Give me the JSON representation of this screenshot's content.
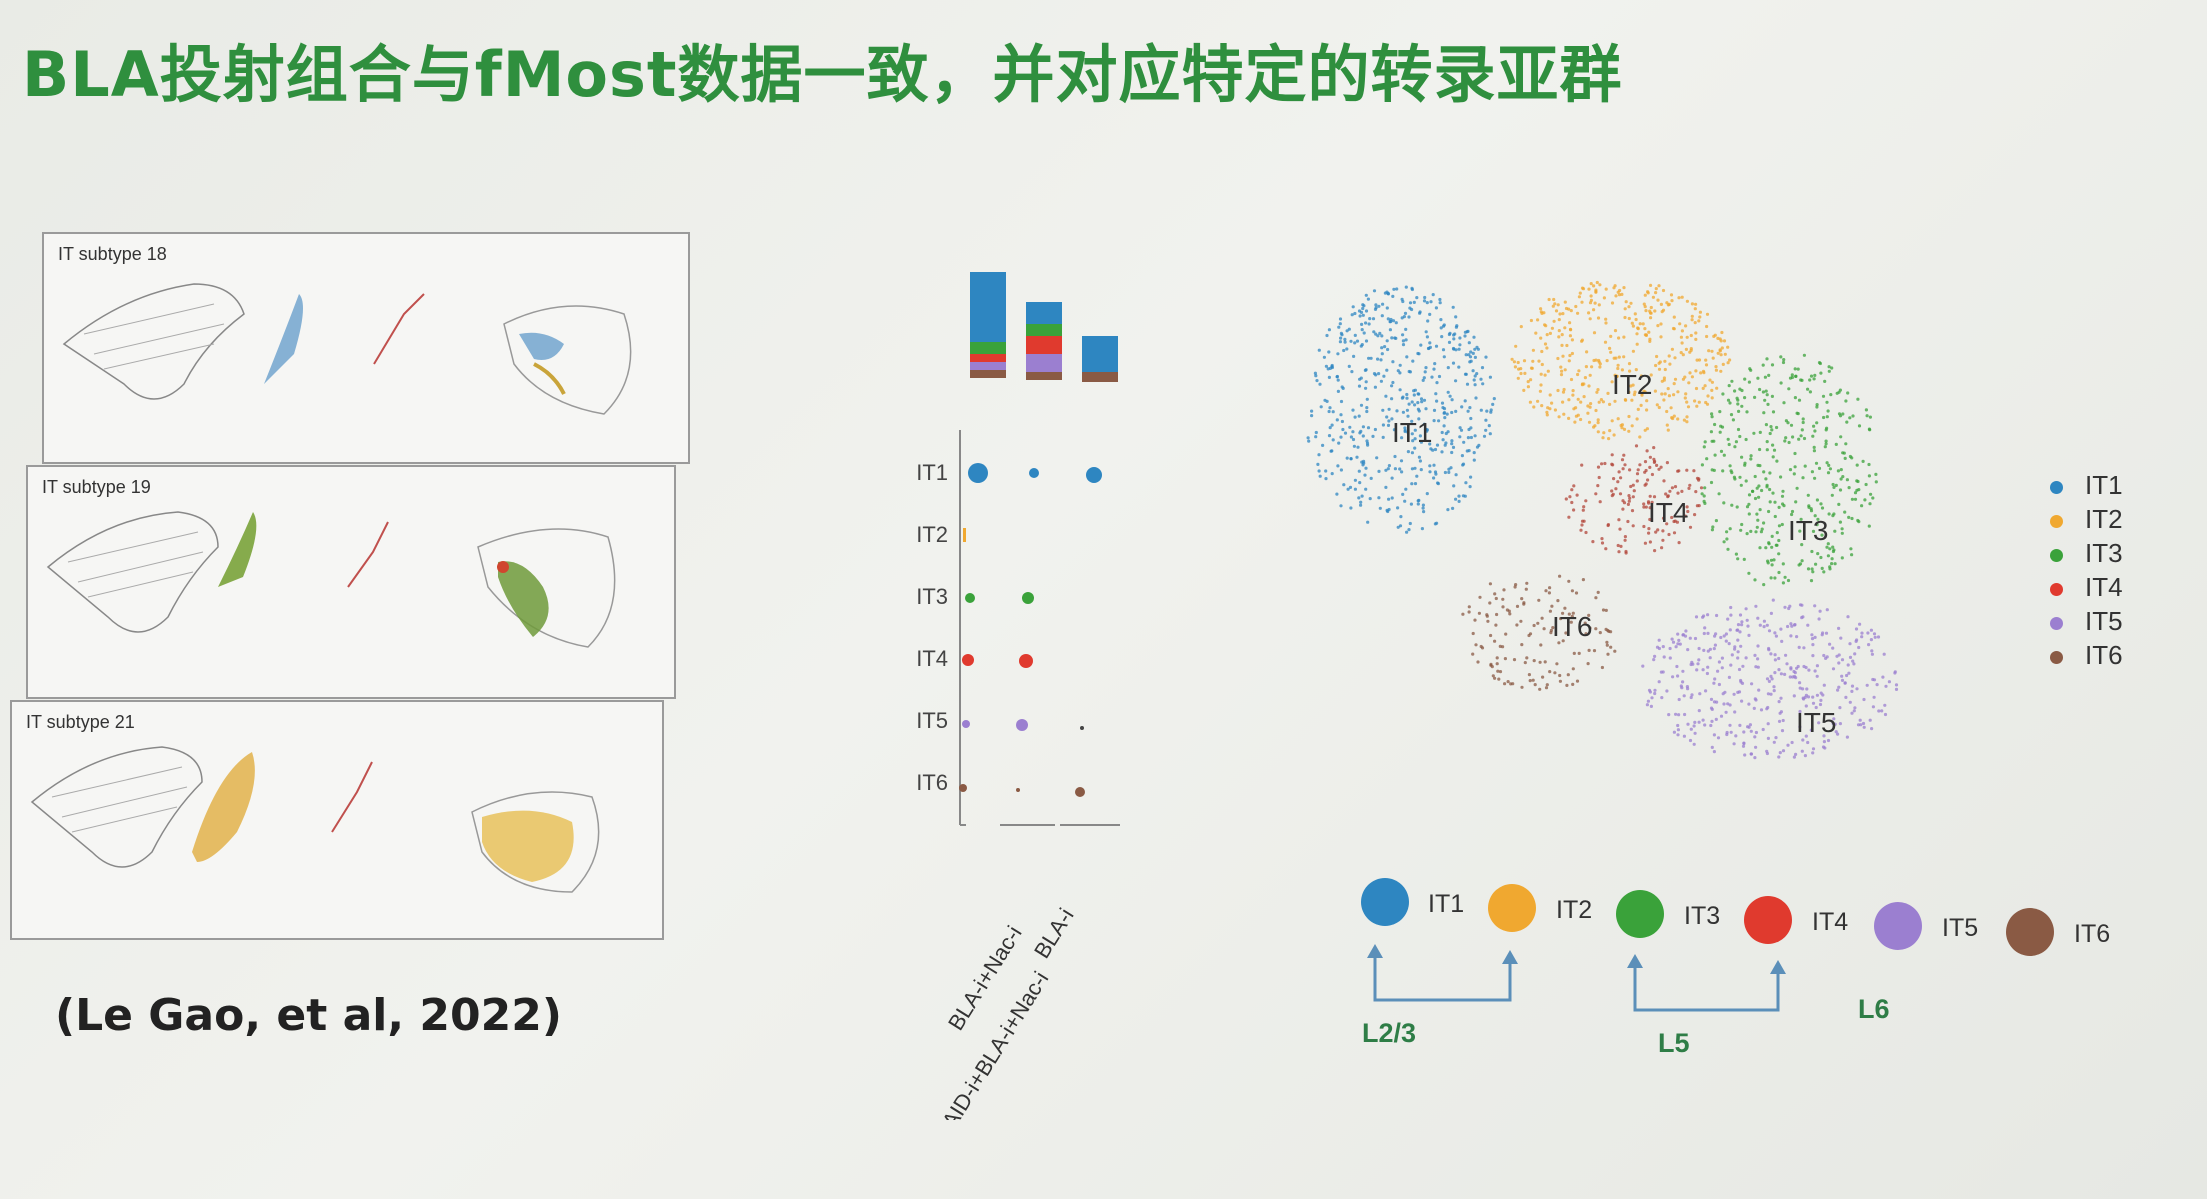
{
  "title": "BLA投射组合与fMost数据一致，并对应特定的转录亚群",
  "panels": [
    {
      "label": "IT subtype 18"
    },
    {
      "label": "IT subtype 19"
    },
    {
      "label": "IT subtype 21"
    }
  ],
  "citation": "(Le Gao, et al, 2022)",
  "dotplot": {
    "rows": [
      "IT1",
      "IT2",
      "IT3",
      "IT4",
      "IT5",
      "IT6"
    ],
    "columns": [
      "AID-i+BLA-i+Nac-i",
      "BLA-i+Nac-i",
      "BLA-i"
    ]
  },
  "umap": {
    "cluster_labels": [
      "IT1",
      "IT2",
      "IT3",
      "IT4",
      "IT5",
      "IT6"
    ]
  },
  "legend": {
    "items": [
      {
        "label": "IT1",
        "color": "#2e86c1"
      },
      {
        "label": "IT2",
        "color": "#f0a830"
      },
      {
        "label": "IT3",
        "color": "#3aa23a"
      },
      {
        "label": "IT4",
        "color": "#e03a2e"
      },
      {
        "label": "IT5",
        "color": "#9b7fd0"
      },
      {
        "label": "IT6",
        "color": "#8a5a44"
      }
    ]
  },
  "layers": {
    "circles": [
      "IT1",
      "IT2",
      "IT3",
      "IT4",
      "IT5",
      "IT6"
    ],
    "groups": [
      "L2/3",
      "L5",
      "L6"
    ]
  }
}
